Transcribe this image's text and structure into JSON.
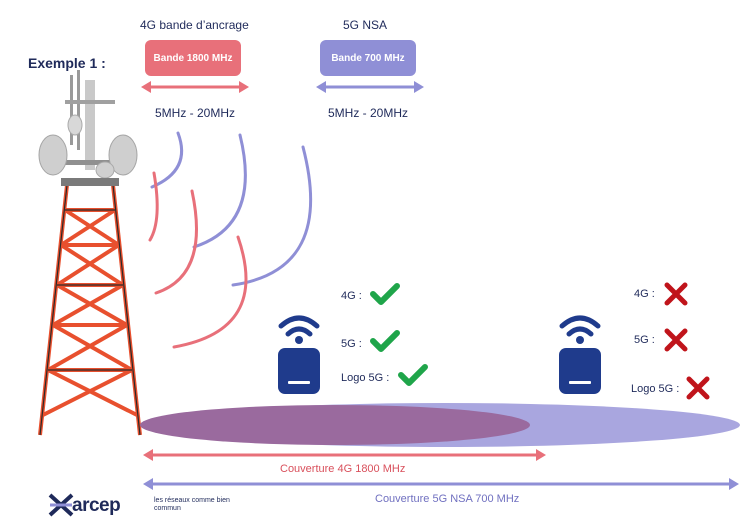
{
  "example_title": "Exemple 1 :",
  "band_4g": {
    "heading": "4G bande d’ancrage",
    "label": "Bande 1800 MHz",
    "bandwidth": "5MHz - 20MHz",
    "color": "#e8707a"
  },
  "band_5g": {
    "heading": "5G NSA",
    "label": "Bande 700 MHz",
    "bandwidth": "5MHz - 20MHz",
    "color": "#8f8fd6"
  },
  "phone_1": {
    "status": [
      {
        "label": "4G :",
        "ok": true
      },
      {
        "label": "5G :",
        "ok": true
      },
      {
        "label": "Logo 5G :",
        "ok": true
      }
    ]
  },
  "phone_2": {
    "status": [
      {
        "label": "4G :",
        "ok": false
      },
      {
        "label": "5G :",
        "ok": false
      },
      {
        "label": "Logo 5G :",
        "ok": false
      }
    ]
  },
  "coverage": {
    "c4g": "Couverture 4G 1800 MHz",
    "c5g": "Couverture 5G NSA 700 MHz"
  },
  "logo": {
    "name": "arcep",
    "tagline": "les réseaux comme bien commun"
  },
  "colors": {
    "red": "#e8707a",
    "purple": "#8f8fd6",
    "navy": "#1f2a5a",
    "ok": "#1fa54a",
    "ko": "#c0141b",
    "tower": "#e8502e"
  }
}
